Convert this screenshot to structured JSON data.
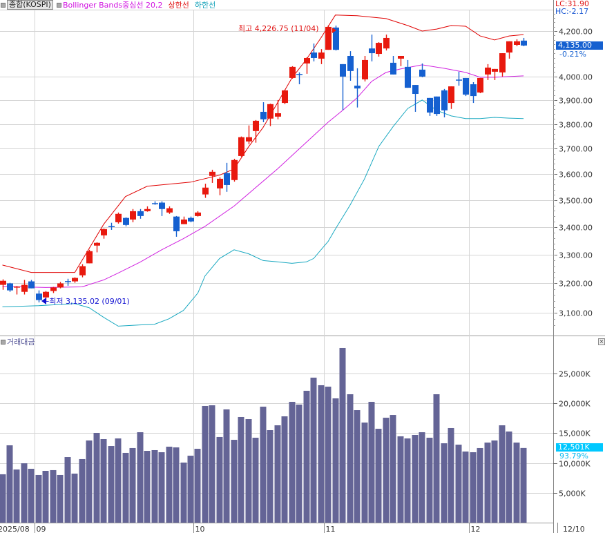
{
  "legend": {
    "symbol_button": "종합(KOSPI)",
    "bollinger_middle": "Bollinger Bands중심선 20,2",
    "bollinger_upper": "상한선",
    "bollinger_lower": "하한선",
    "volume_title": "거래대금",
    "close_label": "×"
  },
  "status": {
    "lc": "LC:31.90",
    "hc": "HC:-2.17",
    "price_badge": "4,135.00",
    "price_change": "-0.21%",
    "volume_badge": "12,501K",
    "volume_ratio": "93.79%"
  },
  "annotations": {
    "high": "최고 4,226.75 (11/04)",
    "low": "←최저 3,135.02 (09/01)"
  },
  "colors": {
    "up": "#e8190e",
    "down": "#1560d0",
    "upper_band": "#e00000",
    "middle_band": "#d020e0",
    "lower_band": "#18a8c0",
    "volume": "#646496",
    "price_badge_bg": "#1560d0",
    "volume_badge_bg": "#00c8ff"
  },
  "chart_data": [
    {
      "type": "candlestick",
      "title": "종합(KOSPI)",
      "scale": "log",
      "ylim": [
        3040,
        4320
      ],
      "yticks": [
        4200,
        4000,
        3900,
        3800,
        3700,
        3600,
        3500,
        3400,
        3300,
        3200,
        3100
      ],
      "ytick_labels": [
        "4,200.00",
        "4,000.00",
        "3,900.00",
        "3,800.00",
        "3,700.00",
        "3,600.00",
        "3,500.00",
        "3,400.00",
        "3,300.00",
        "3,200.00",
        "3,100.00"
      ],
      "x_labels": [
        {
          "label": "2025/08",
          "index": 0
        },
        {
          "label": "09",
          "index": 5
        },
        {
          "label": "10",
          "index": 27
        },
        {
          "label": "11",
          "index": 45
        },
        {
          "label": "12",
          "index": 65
        }
      ],
      "cursor_date": "12/10",
      "ohlc": [
        [
          3195,
          3214,
          3178,
          3209
        ],
        [
          3200,
          3202,
          3171,
          3176
        ],
        [
          3187,
          3191,
          3162,
          3189
        ],
        [
          3171,
          3212,
          3162,
          3195
        ],
        [
          3207,
          3212,
          3183,
          3183
        ],
        [
          3165,
          3176,
          3135.02,
          3143
        ],
        [
          3152,
          3174,
          3139,
          3171
        ],
        [
          3174,
          3188,
          3167,
          3186
        ],
        [
          3186,
          3205,
          3183,
          3200
        ],
        [
          3208,
          3216,
          3192,
          3206
        ],
        [
          3207,
          3221,
          3202,
          3219
        ],
        [
          3228,
          3267,
          3221,
          3260
        ],
        [
          3270,
          3318,
          3270,
          3313
        ],
        [
          3333,
          3345,
          3309,
          3343
        ],
        [
          3370,
          3395,
          3358,
          3393
        ],
        [
          3404,
          3416,
          3390,
          3402
        ],
        [
          3418,
          3454,
          3413,
          3449
        ],
        [
          3434,
          3436,
          3403,
          3408
        ],
        [
          3428,
          3467,
          3418,
          3459
        ],
        [
          3459,
          3467,
          3431,
          3441
        ],
        [
          3459,
          3477,
          3457,
          3467
        ],
        [
          3489,
          3496,
          3483,
          3487
        ],
        [
          3491,
          3496,
          3441,
          3467
        ],
        [
          3454,
          3477,
          3449,
          3470
        ],
        [
          3439,
          3441,
          3365,
          3385
        ],
        [
          3411,
          3439,
          3411,
          3428
        ],
        [
          3434,
          3439,
          3418,
          3421
        ],
        [
          3441,
          3459,
          3439,
          3454
        ],
        [
          3522,
          3563,
          3509,
          3548
        ],
        [
          3593,
          3617,
          3566,
          3609
        ],
        [
          3545,
          3588,
          3519,
          3582
        ],
        [
          3604,
          3644,
          3532,
          3558
        ],
        [
          3577,
          3660,
          3571,
          3655
        ],
        [
          3671,
          3749,
          3668,
          3746
        ],
        [
          3729,
          3794,
          3718,
          3746
        ],
        [
          3771,
          3816,
          3724,
          3813
        ],
        [
          3850,
          3890,
          3807,
          3819
        ],
        [
          3822,
          3884,
          3791,
          3882
        ],
        [
          3830,
          3899,
          3819,
          3844
        ],
        [
          3887,
          3943,
          3882,
          3940
        ],
        [
          3993,
          4044,
          3990,
          4041
        ],
        [
          4010,
          4017,
          3966,
          4008
        ],
        [
          4056,
          4083,
          4011,
          4080
        ],
        [
          4104,
          4144,
          4065,
          4080
        ],
        [
          4077,
          4119,
          4053,
          4104
        ],
        [
          4116,
          4226.75,
          4116,
          4219
        ],
        [
          4216,
          4225,
          4113,
          4116
        ],
        [
          4053,
          4053,
          3857,
          3999
        ],
        [
          4089,
          4110,
          3981,
          4023
        ],
        [
          3960,
          4035,
          3868,
          3948
        ],
        [
          3987,
          4089,
          3978,
          4071
        ],
        [
          4122,
          4184,
          4065,
          4101
        ],
        [
          4098,
          4150,
          4086,
          4147
        ],
        [
          4122,
          4184,
          4113,
          4169
        ],
        [
          4059,
          4089,
          4008,
          4008
        ],
        [
          4077,
          4089,
          4044,
          4089
        ],
        [
          4041,
          4071,
          3951,
          3951
        ],
        [
          3963,
          3963,
          3850,
          3925
        ],
        [
          4029,
          4056,
          3996,
          3999
        ],
        [
          3908,
          3908,
          3833,
          3847
        ],
        [
          3914,
          3914,
          3833,
          3841
        ],
        [
          3940,
          3946,
          3827,
          3856
        ],
        [
          3887,
          3957,
          3862,
          3957
        ],
        [
          3986,
          4020,
          3960,
          3982
        ],
        [
          3993,
          3993,
          3916,
          3922
        ],
        [
          3966,
          3975,
          3887,
          3916
        ],
        [
          3931,
          3993,
          3928,
          3993
        ],
        [
          4008,
          4053,
          3984,
          4038
        ],
        [
          4020,
          4032,
          3984,
          4032
        ],
        [
          4017,
          4101,
          3999,
          4101
        ],
        [
          4104,
          4154,
          4077,
          4154
        ],
        [
          4138,
          4163,
          4132,
          4154
        ],
        [
          4157,
          4169,
          4132,
          4135
        ]
      ],
      "high_point": {
        "index": 45,
        "value": 4226.75,
        "date": "11/04"
      },
      "low_point": {
        "index": 5,
        "value": 3135.02,
        "date": "09/01"
      },
      "bollinger": {
        "period": 20,
        "k": 2,
        "upper": [
          [
            0,
            3264
          ],
          [
            4,
            3238
          ],
          [
            10,
            3238
          ],
          [
            14,
            3411
          ],
          [
            17,
            3514
          ],
          [
            20,
            3553
          ],
          [
            26,
            3569
          ],
          [
            30,
            3596
          ],
          [
            32,
            3620
          ],
          [
            34,
            3707
          ],
          [
            36,
            3785
          ],
          [
            38,
            3887
          ],
          [
            40,
            3993
          ],
          [
            42,
            4074
          ],
          [
            44,
            4169
          ],
          [
            46,
            4273
          ],
          [
            49,
            4270
          ],
          [
            53,
            4257
          ],
          [
            56,
            4225
          ],
          [
            58,
            4200
          ],
          [
            60,
            4209
          ],
          [
            62,
            4225
          ],
          [
            64,
            4222
          ],
          [
            66,
            4178
          ],
          [
            68,
            4160
          ],
          [
            70,
            4178
          ],
          [
            72,
            4184
          ]
        ],
        "middle": [
          [
            0,
            3190
          ],
          [
            6,
            3186
          ],
          [
            11,
            3188
          ],
          [
            14,
            3212
          ],
          [
            16,
            3236
          ],
          [
            19,
            3274
          ],
          [
            22,
            3318
          ],
          [
            25,
            3358
          ],
          [
            28,
            3403
          ],
          [
            32,
            3478
          ],
          [
            38,
            3620
          ],
          [
            45,
            3807
          ],
          [
            47,
            3856
          ],
          [
            49,
            3908
          ],
          [
            51,
            3978
          ],
          [
            53,
            4017
          ],
          [
            55,
            4032
          ],
          [
            58,
            4050
          ],
          [
            61,
            4035
          ],
          [
            64,
            4017
          ],
          [
            66,
            3996
          ],
          [
            68,
            3996
          ],
          [
            72,
            4002
          ]
        ],
        "lower": [
          [
            0,
            3120
          ],
          [
            5,
            3124
          ],
          [
            10,
            3131
          ],
          [
            12,
            3117
          ],
          [
            14,
            3085
          ],
          [
            16,
            3056
          ],
          [
            19,
            3060
          ],
          [
            21,
            3062
          ],
          [
            23,
            3080
          ],
          [
            25,
            3108
          ],
          [
            27,
            3167
          ],
          [
            28,
            3226
          ],
          [
            30,
            3287
          ],
          [
            32,
            3318
          ],
          [
            34,
            3304
          ],
          [
            36,
            3280
          ],
          [
            38,
            3275
          ],
          [
            40,
            3270
          ],
          [
            42,
            3275
          ],
          [
            43,
            3287
          ],
          [
            45,
            3348
          ],
          [
            46,
            3393
          ],
          [
            48,
            3480
          ],
          [
            50,
            3580
          ],
          [
            52,
            3709
          ],
          [
            54,
            3790
          ],
          [
            56,
            3864
          ],
          [
            58,
            3899
          ],
          [
            60,
            3856
          ],
          [
            62,
            3833
          ],
          [
            64,
            3822
          ],
          [
            66,
            3822
          ],
          [
            68,
            3827
          ],
          [
            70,
            3824
          ],
          [
            72,
            3822
          ]
        ]
      }
    },
    {
      "type": "bar",
      "title": "거래대금",
      "unit": "K",
      "ylim": [
        0,
        30000
      ],
      "yticks": [
        25000,
        20000,
        15000,
        10000,
        5000
      ],
      "ytick_labels": [
        "25,000K",
        "20,000K",
        "15,000K",
        "10,000K",
        "5,000K"
      ],
      "values": [
        8100,
        12950,
        8900,
        9940,
        9020,
        7980,
        8670,
        8790,
        7980,
        10980,
        8210,
        10640,
        13760,
        15030,
        13990,
        12830,
        14100,
        11680,
        12490,
        15140,
        12020,
        12140,
        11790,
        12720,
        12600,
        10060,
        11210,
        12370,
        19540,
        19650,
        14340,
        18960,
        13870,
        17690,
        17340,
        14220,
        19420,
        15490,
        16300,
        17800,
        20230,
        19770,
        22080,
        24280,
        23010,
        22770,
        20810,
        29250,
        21500,
        18840,
        16760,
        20230,
        15720,
        17570,
        18030,
        14450,
        14100,
        14680,
        15140,
        14220,
        21500,
        13290,
        15840,
        13060,
        11910,
        11790,
        12490,
        13410,
        13760,
        16300,
        15260,
        13410,
        12501
      ]
    }
  ]
}
